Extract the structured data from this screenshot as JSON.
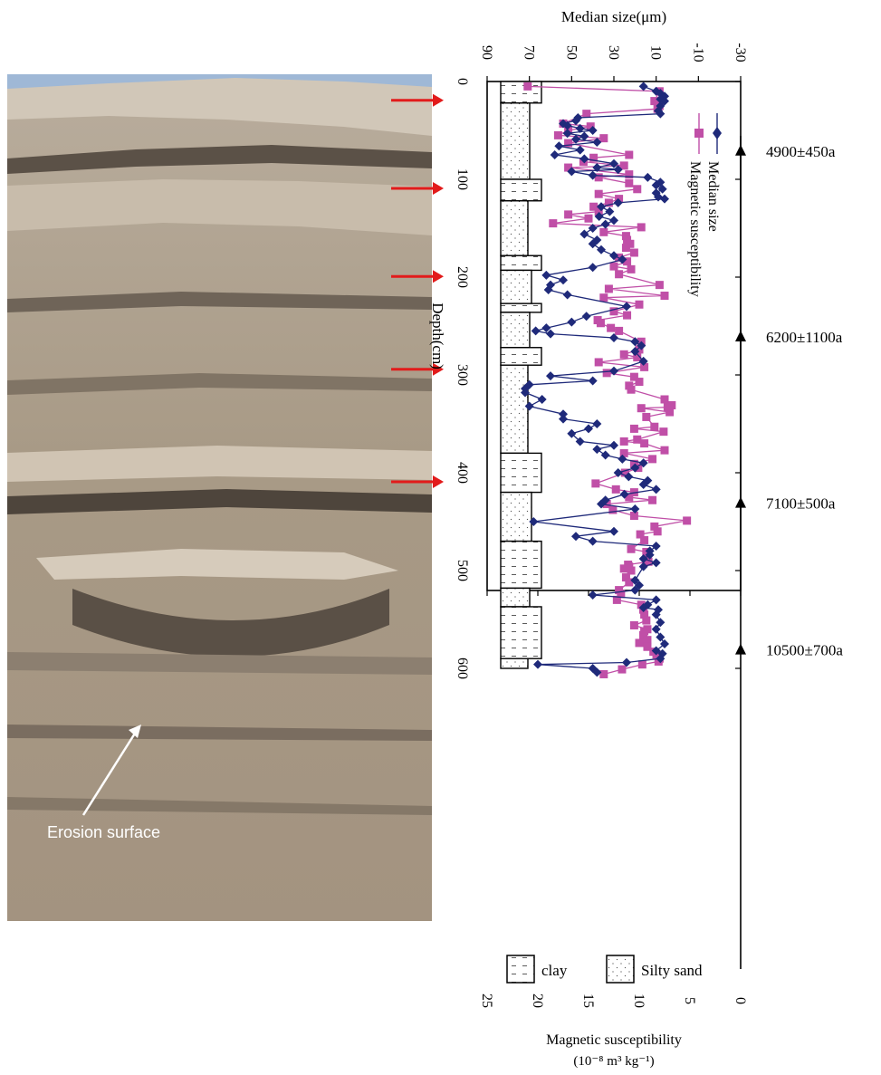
{
  "chart_data": {
    "type": "line",
    "depth_axis": {
      "label": "Depth(cm)",
      "range": [
        0,
        650
      ],
      "ticks": [
        0,
        100,
        200,
        300,
        400,
        500,
        600
      ]
    },
    "top_axis": {
      "label": "Median size(μm)",
      "range": [
        -30,
        90
      ],
      "ticks": [
        -30,
        -10,
        10,
        30,
        50,
        70,
        90
      ]
    },
    "bottom_axis": {
      "label_line1": "Magnetic susceptibility",
      "label_line2": "(10⁻⁸ m³ kg⁻¹)",
      "range": [
        0,
        25
      ],
      "ticks": [
        0,
        5,
        10,
        15,
        20,
        25
      ]
    },
    "series": [
      {
        "name": "Median size",
        "color": "#1f2a7a",
        "marker": "diamond",
        "axis": "top",
        "points": [
          [
            16,
            5
          ],
          [
            10,
            10
          ],
          [
            8,
            12
          ],
          [
            6,
            15
          ],
          [
            8,
            18
          ],
          [
            6,
            20
          ],
          [
            8,
            25
          ],
          [
            9,
            30
          ],
          [
            8,
            33
          ],
          [
            47,
            37
          ],
          [
            48,
            40
          ],
          [
            54,
            43
          ],
          [
            52,
            45
          ],
          [
            46,
            48
          ],
          [
            40,
            50
          ],
          [
            52,
            53
          ],
          [
            44,
            56
          ],
          [
            48,
            59
          ],
          [
            38,
            62
          ],
          [
            56,
            66
          ],
          [
            46,
            70
          ],
          [
            58,
            75
          ],
          [
            44,
            79
          ],
          [
            30,
            84
          ],
          [
            38,
            88
          ],
          [
            28,
            90
          ],
          [
            50,
            92
          ],
          [
            40,
            96
          ],
          [
            14,
            98
          ],
          [
            8,
            103
          ],
          [
            10,
            106
          ],
          [
            7,
            110
          ],
          [
            10,
            114
          ],
          [
            9,
            118
          ],
          [
            6,
            120
          ],
          [
            28,
            124
          ],
          [
            36,
            128
          ],
          [
            32,
            133
          ],
          [
            37,
            138
          ],
          [
            30,
            142
          ],
          [
            34,
            146
          ],
          [
            40,
            150
          ],
          [
            44,
            156
          ],
          [
            38,
            162
          ],
          [
            40,
            166
          ],
          [
            36,
            172
          ],
          [
            30,
            178
          ],
          [
            26,
            182
          ],
          [
            40,
            190
          ],
          [
            62,
            198
          ],
          [
            54,
            203
          ],
          [
            60,
            208
          ],
          [
            61,
            213
          ],
          [
            52,
            218
          ],
          [
            24,
            230
          ],
          [
            43,
            240
          ],
          [
            50,
            246
          ],
          [
            62,
            252
          ],
          [
            67,
            255
          ],
          [
            60,
            258
          ],
          [
            30,
            262
          ],
          [
            20,
            266
          ],
          [
            17,
            270
          ],
          [
            20,
            276
          ],
          [
            16,
            286
          ],
          [
            30,
            296
          ],
          [
            60,
            301
          ],
          [
            40,
            306
          ],
          [
            70,
            310
          ],
          [
            72,
            314
          ],
          [
            72,
            318
          ],
          [
            64,
            325
          ],
          [
            70,
            332
          ],
          [
            54,
            340
          ],
          [
            54,
            345
          ],
          [
            38,
            350
          ],
          [
            42,
            355
          ],
          [
            50,
            360
          ],
          [
            46,
            368
          ],
          [
            30,
            372
          ],
          [
            38,
            376
          ],
          [
            34,
            382
          ],
          [
            26,
            386
          ],
          [
            16,
            390
          ],
          [
            20,
            395
          ],
          [
            28,
            400
          ],
          [
            23,
            404
          ],
          [
            14,
            408
          ],
          [
            16,
            412
          ],
          [
            10,
            417
          ],
          [
            25,
            422
          ],
          [
            34,
            428
          ],
          [
            36,
            432
          ],
          [
            20,
            437
          ],
          [
            68,
            450
          ],
          [
            30,
            460
          ],
          [
            48,
            465
          ],
          [
            40,
            470
          ],
          [
            10,
            475
          ],
          [
            13,
            480
          ],
          [
            13,
            484
          ],
          [
            16,
            488
          ],
          [
            10,
            492
          ],
          [
            16,
            496
          ],
          [
            20,
            510
          ],
          [
            18,
            515
          ],
          [
            20,
            520
          ],
          [
            40,
            525
          ],
          [
            10,
            530
          ],
          [
            14,
            535
          ],
          [
            16,
            538
          ],
          [
            9,
            540
          ],
          [
            10,
            545
          ],
          [
            8,
            553
          ],
          [
            10,
            560
          ],
          [
            8,
            568
          ],
          [
            6,
            575
          ],
          [
            10,
            582
          ],
          [
            7,
            585
          ],
          [
            8,
            590
          ],
          [
            24,
            594
          ],
          [
            66,
            596
          ],
          [
            40,
            600
          ],
          [
            38,
            604
          ]
        ]
      },
      {
        "name": "Magnetic susceptibility",
        "color": "#c04fa7",
        "marker": "square",
        "axis": "bottom",
        "points": [
          [
            21,
            5
          ],
          [
            8,
            10
          ],
          [
            8.5,
            20
          ],
          [
            8,
            25
          ],
          [
            8.2,
            28
          ],
          [
            15.2,
            33
          ],
          [
            17.5,
            43
          ],
          [
            14.8,
            46
          ],
          [
            17,
            50
          ],
          [
            18,
            55
          ],
          [
            13.5,
            58
          ],
          [
            17,
            63
          ],
          [
            11,
            75
          ],
          [
            14.5,
            78
          ],
          [
            15.5,
            82
          ],
          [
            11.5,
            86
          ],
          [
            17,
            88
          ],
          [
            11,
            95
          ],
          [
            14,
            98
          ],
          [
            11,
            104
          ],
          [
            10.2,
            110
          ],
          [
            14,
            115
          ],
          [
            12,
            120
          ],
          [
            13,
            124
          ],
          [
            14.5,
            128
          ],
          [
            14,
            133
          ],
          [
            17,
            136
          ],
          [
            15,
            140
          ],
          [
            18.5,
            145
          ],
          [
            9.8,
            149
          ],
          [
            13.5,
            154
          ],
          [
            11.3,
            158
          ],
          [
            11.2,
            162
          ],
          [
            10.9,
            166
          ],
          [
            11.3,
            170
          ],
          [
            10.5,
            175
          ],
          [
            12,
            180
          ],
          [
            11.2,
            184
          ],
          [
            12.5,
            189
          ],
          [
            10.8,
            192
          ],
          [
            12,
            197
          ],
          [
            8,
            208
          ],
          [
            13,
            212
          ],
          [
            7.5,
            219
          ],
          [
            13.5,
            221
          ],
          [
            10,
            228
          ],
          [
            12.5,
            235
          ],
          [
            11.2,
            239
          ],
          [
            14.1,
            244
          ],
          [
            13.8,
            247
          ],
          [
            12.8,
            252
          ],
          [
            12,
            255
          ],
          [
            9.8,
            266
          ],
          [
            10,
            274
          ],
          [
            11.5,
            279
          ],
          [
            10.2,
            282
          ],
          [
            14,
            287
          ],
          [
            9.5,
            292
          ],
          [
            13.2,
            298
          ],
          [
            10.5,
            302
          ],
          [
            10,
            307
          ],
          [
            11,
            311
          ],
          [
            10.8,
            315
          ],
          [
            7.5,
            325
          ],
          [
            6.8,
            331
          ],
          [
            7.2,
            333
          ],
          [
            9.8,
            334
          ],
          [
            7,
            338
          ],
          [
            9.3,
            343
          ],
          [
            8.5,
            353
          ],
          [
            10.5,
            355
          ],
          [
            7.6,
            358
          ],
          [
            10.2,
            366
          ],
          [
            11.5,
            368
          ],
          [
            9.5,
            370
          ],
          [
            7.5,
            377
          ],
          [
            11.5,
            380
          ],
          [
            8.7,
            386
          ],
          [
            10.5,
            391
          ],
          [
            10.1,
            395
          ],
          [
            11.4,
            400
          ],
          [
            14.3,
            411
          ],
          [
            12.3,
            417
          ],
          [
            10.5,
            420
          ],
          [
            11,
            425
          ],
          [
            8.7,
            428
          ],
          [
            13.2,
            432
          ],
          [
            12.6,
            438
          ],
          [
            10.5,
            444
          ],
          [
            5.3,
            449
          ],
          [
            8.5,
            455
          ],
          [
            8.2,
            460
          ],
          [
            9.9,
            463
          ],
          [
            9.5,
            469
          ],
          [
            10.8,
            478
          ],
          [
            9.3,
            481
          ],
          [
            9.2,
            484
          ],
          [
            9.1,
            491
          ],
          [
            11.1,
            494
          ],
          [
            11,
            496
          ],
          [
            11.5,
            498
          ],
          [
            10.8,
            500
          ],
          [
            11.3,
            507
          ],
          [
            11,
            512
          ],
          [
            12,
            520
          ],
          [
            11.8,
            524
          ],
          [
            12.2,
            530
          ],
          [
            9.8,
            535
          ],
          [
            9.6,
            540
          ],
          [
            9.5,
            545
          ],
          [
            9.3,
            551
          ],
          [
            10.5,
            556
          ],
          [
            9.2,
            560
          ],
          [
            9.5,
            562
          ],
          [
            9.6,
            566
          ],
          [
            9.2,
            571
          ],
          [
            10,
            574
          ],
          [
            9.2,
            578
          ],
          [
            8.6,
            583
          ],
          [
            8.3,
            586
          ],
          [
            8,
            590
          ],
          [
            8.1,
            593
          ],
          [
            9.7,
            596
          ],
          [
            11.7,
            601
          ],
          [
            13.5,
            606
          ]
        ]
      }
    ],
    "legend": {
      "entries": [
        "Median size",
        "Magnetic susceptibility"
      ],
      "position": "top-right"
    },
    "lithology": {
      "key_labels": [
        "clay",
        "Silty sand"
      ],
      "layers": [
        {
          "type": "clay",
          "top": 0,
          "bottom": 22
        },
        {
          "type": "sand",
          "top": 22,
          "bottom": 100
        },
        {
          "type": "clay",
          "top": 100,
          "bottom": 122
        },
        {
          "type": "sand",
          "top": 122,
          "bottom": 178
        },
        {
          "type": "clay",
          "top": 178,
          "bottom": 193
        },
        {
          "type": "sand",
          "top": 193,
          "bottom": 227
        },
        {
          "type": "clay",
          "top": 227,
          "bottom": 236
        },
        {
          "type": "sand",
          "top": 236,
          "bottom": 272
        },
        {
          "type": "clay",
          "top": 272,
          "bottom": 290
        },
        {
          "type": "sand",
          "top": 290,
          "bottom": 380
        },
        {
          "type": "clay",
          "top": 380,
          "bottom": 420
        },
        {
          "type": "sand",
          "top": 420,
          "bottom": 470
        },
        {
          "type": "clay",
          "top": 470,
          "bottom": 518
        },
        {
          "type": "sand",
          "top": 518,
          "bottom": 537
        },
        {
          "type": "clay",
          "top": 537,
          "bottom": 590
        },
        {
          "type": "sand",
          "top": 590,
          "bottom": 600
        }
      ]
    },
    "dates": [
      {
        "label": "4900±450a",
        "depth": 35
      },
      {
        "label": "6200±1100a",
        "depth": 225
      },
      {
        "label": "7100±500a",
        "depth": 395
      },
      {
        "label": "10500±700a",
        "depth": 545
      }
    ],
    "photo": {
      "annotation": "Erosion surface",
      "arrow_depths": [
        10,
        100,
        190,
        285,
        400
      ]
    }
  }
}
